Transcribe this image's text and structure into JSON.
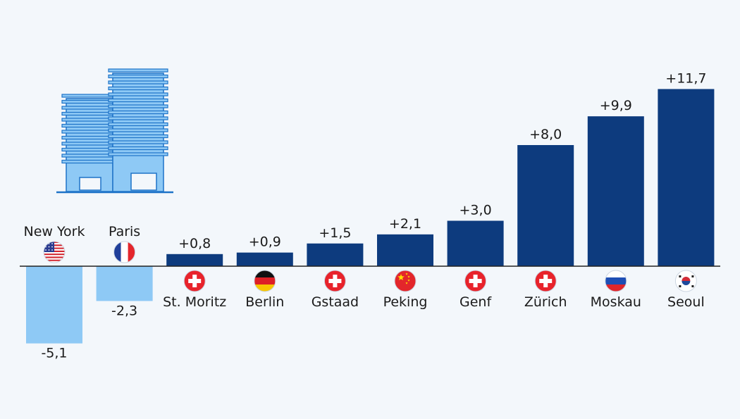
{
  "chart_data": {
    "type": "bar",
    "title": "",
    "xlabel": "",
    "ylabel": "",
    "categories": [
      "New York",
      "Paris",
      "St. Moritz",
      "Berlin",
      "Gstaad",
      "Peking",
      "Genf",
      "Zürich",
      "Moskau",
      "Seoul"
    ],
    "values": [
      -5.1,
      -2.3,
      0.8,
      0.9,
      1.5,
      2.1,
      3.0,
      8.0,
      9.9,
      11.7
    ],
    "value_labels": [
      "-5,1",
      "-2,3",
      "+0,8",
      "+0,9",
      "+1,5",
      "+2,1",
      "+3,0",
      "+8,0",
      "+9,9",
      "+11,7"
    ],
    "flags": [
      "us-flag-icon",
      "france-flag-icon",
      "switzerland-flag-icon",
      "germany-flag-icon",
      "switzerland-flag-icon",
      "china-flag-icon",
      "switzerland-flag-icon",
      "switzerland-flag-icon",
      "russia-flag-icon",
      "south-korea-flag-icon"
    ],
    "ylim": [
      -6,
      13
    ],
    "grid": false,
    "legend": "none",
    "colors": {
      "positive": "#0d3b7e",
      "negative": "#8ec9f5",
      "illustration": "#8ec9f5",
      "outline": "#1e73c8"
    }
  }
}
